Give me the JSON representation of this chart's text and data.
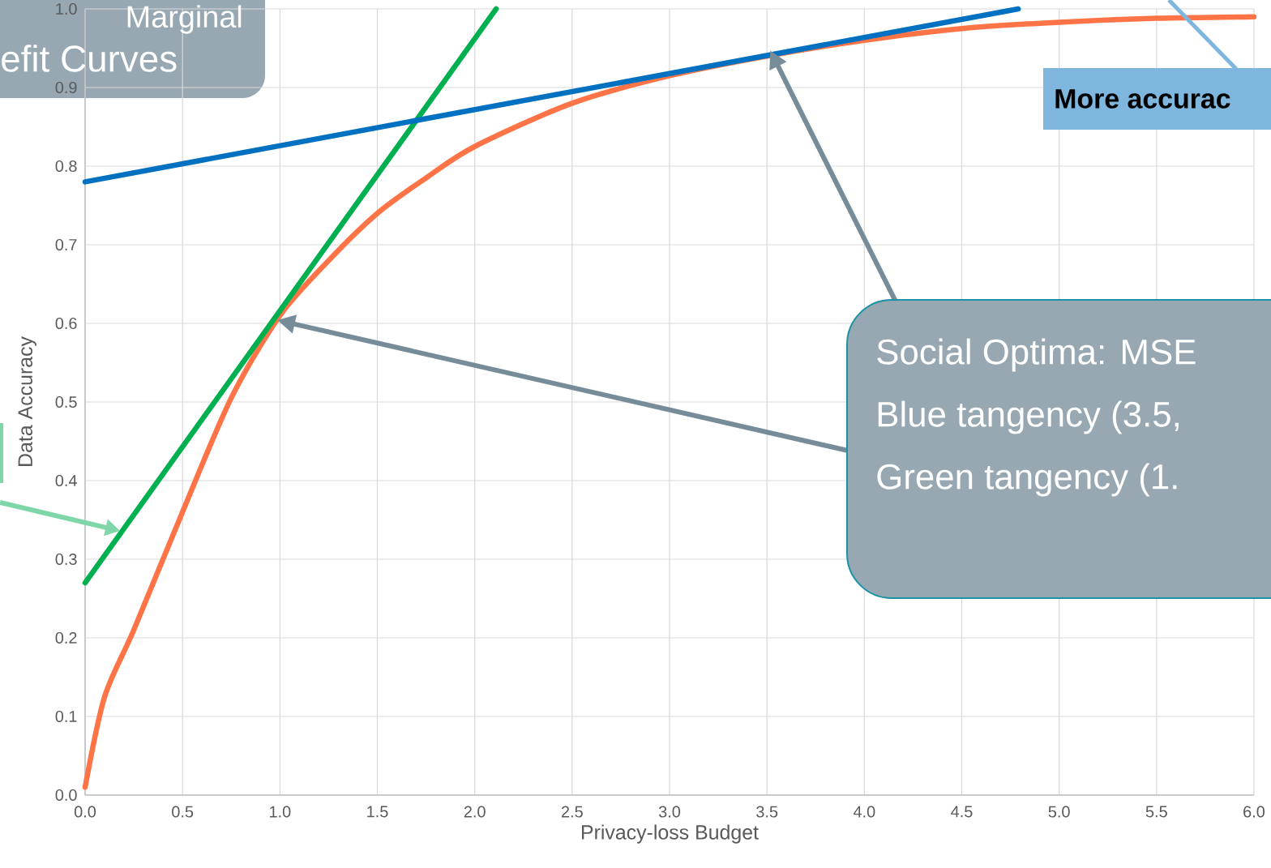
{
  "chart_data": {
    "type": "line",
    "xlabel": "Privacy-loss Budget",
    "ylabel": "Data Accuracy",
    "xlim": [
      0,
      6
    ],
    "ylim": [
      0,
      1
    ],
    "xticks": [
      {
        "value": 0,
        "label": "0.0"
      },
      0.5,
      {
        "value": 1,
        "label": "1.0"
      },
      1.5,
      {
        "value": 2,
        "label": "2.0"
      },
      2.5,
      {
        "value": 3,
        "label": "3.0"
      },
      3.5,
      {
        "value": 4,
        "label": "4.0"
      },
      4.5,
      {
        "value": 5,
        "label": "5.0"
      },
      5.5,
      {
        "value": 6,
        "label": "6.0"
      }
    ],
    "yticks": [
      {
        "value": 0,
        "label": "0.0"
      },
      0.1,
      0.2,
      0.3,
      0.4,
      0.5,
      0.6,
      0.7,
      0.8,
      0.9,
      {
        "value": 1,
        "label": "1.0"
      }
    ],
    "grid": true,
    "line_style": "solid",
    "series": [
      {
        "color": "#ff7447",
        "x": [
          0,
          0.1,
          0.25,
          0.5,
          0.75,
          1.0,
          1.25,
          1.5,
          1.75,
          2.0,
          2.5,
          3.0,
          3.5,
          4.0,
          4.5,
          5.0,
          5.5,
          6.0
        ],
        "values": [
          0.01,
          0.125,
          0.21,
          0.36,
          0.505,
          0.61,
          0.68,
          0.74,
          0.785,
          0.825,
          0.88,
          0.915,
          0.94,
          0.96,
          0.975,
          0.983,
          0.988,
          0.99
        ]
      },
      {
        "color": "#00b050",
        "x": [
          0,
          2.11
        ],
        "values": [
          0.27,
          1.0
        ]
      },
      {
        "color": "#0070c0",
        "x": [
          0,
          4.79
        ],
        "values": [
          0.78,
          1.0
        ]
      }
    ],
    "annotations": [
      "Marginal",
      "efit Curves",
      "More accurac",
      "Social Optima: MSE",
      "Blue tangency (3.5,",
      "Green tangency (1."
    ]
  }
}
